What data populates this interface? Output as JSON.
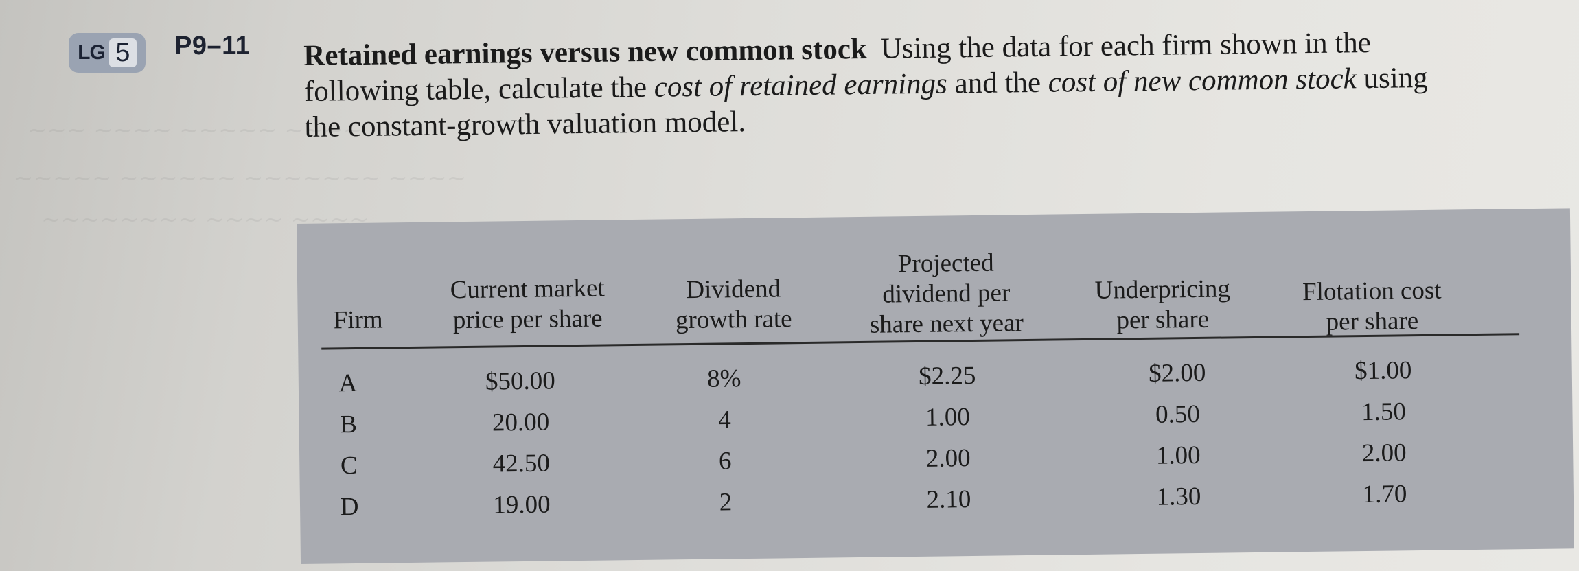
{
  "badge": {
    "lg_label": "LG",
    "lg_number": "5"
  },
  "problem": {
    "number": "P9–11",
    "title": "Retained earnings versus new common stock",
    "text_part1": "Using the data for each firm shown in the following table, calculate the ",
    "emph1": "cost of retained earnings",
    "text_part2": " and the ",
    "emph2": "cost of new common stock",
    "text_part3": " using the constant-growth valuation model."
  },
  "table": {
    "headers": {
      "firm": "Firm",
      "price_line1": "Current market",
      "price_line2": "price per share",
      "growth_line1": "Dividend",
      "growth_line2": "growth rate",
      "div_line1": "Projected",
      "div_line2": "dividend per",
      "div_line3": "share next year",
      "under_line1": "Underpricing",
      "under_line2": "per share",
      "flot_line1": "Flotation cost",
      "flot_line2": "per share"
    },
    "rows": [
      {
        "firm": "A",
        "price": "$50.00",
        "growth": "8%",
        "dividend": "$2.25",
        "underpricing": "$2.00",
        "flotation": "$1.00"
      },
      {
        "firm": "B",
        "price": "20.00",
        "growth": "4",
        "dividend": "1.00",
        "underpricing": "0.50",
        "flotation": "1.50"
      },
      {
        "firm": "C",
        "price": "42.50",
        "growth": "6",
        "dividend": "2.00",
        "underpricing": "1.00",
        "flotation": "2.00"
      },
      {
        "firm": "D",
        "price": "19.00",
        "growth": "2",
        "dividend": "2.10",
        "underpricing": "1.30",
        "flotation": "1.70"
      }
    ]
  },
  "colors": {
    "page": "#e4e3df",
    "table_panel": "#a9abb1",
    "badge": "#9aa3b2"
  }
}
